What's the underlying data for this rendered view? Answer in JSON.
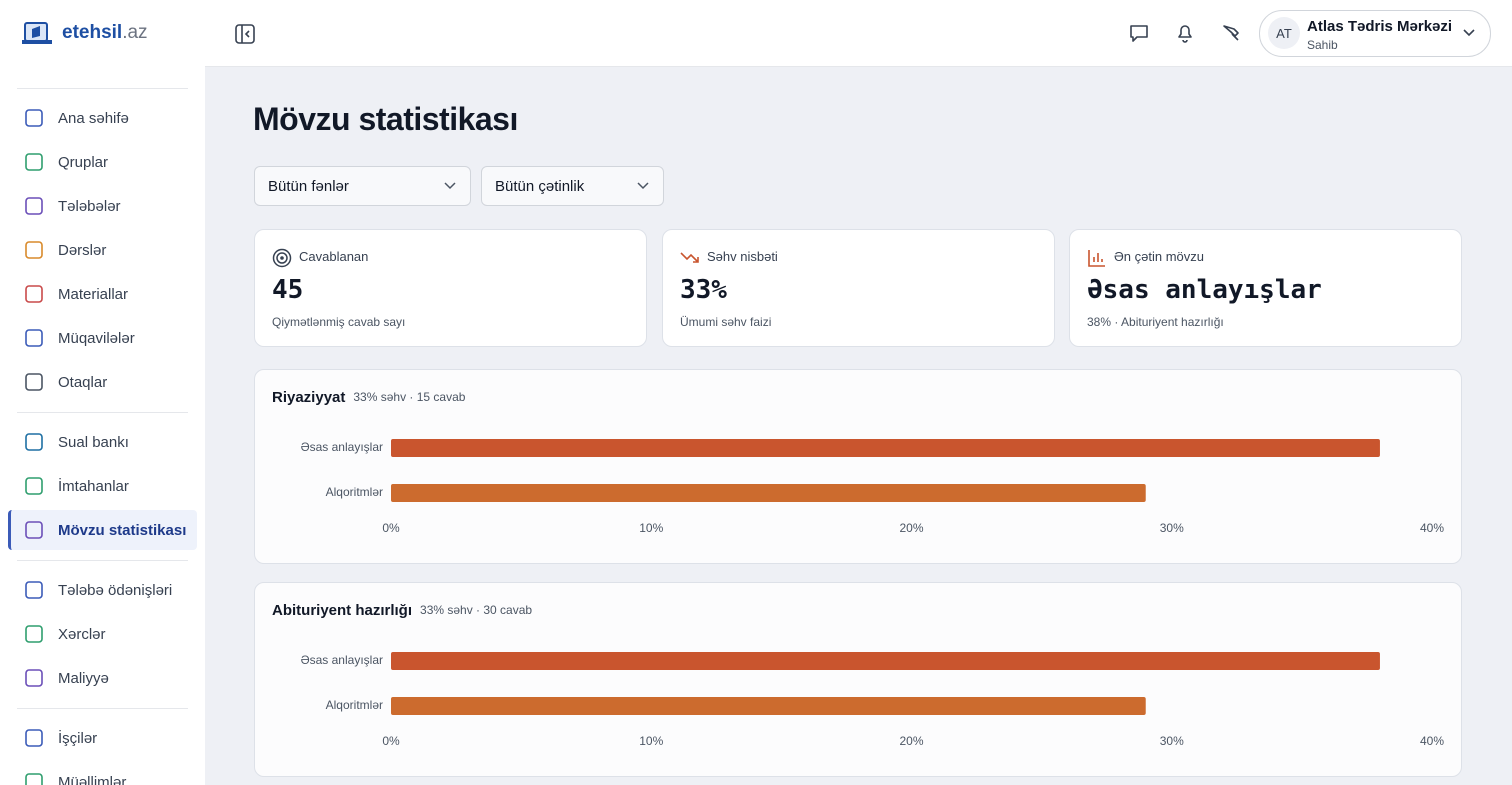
{
  "logo": {
    "name": "etehsil",
    "suffix": ".az"
  },
  "nav": [
    "Ana səhifə",
    "Qruplar",
    "Tələbələr",
    "Dərslər",
    "Materiallar",
    "Müqavilələr",
    "Otaqlar",
    "Sual bankı",
    "İmtahanlar",
    "Mövzu statistikası",
    "Tələbə ödənişləri",
    "Xərclər",
    "Maliyyə",
    "İşçilər",
    "Müəllimlər"
  ],
  "user": {
    "initials": "AT",
    "name": "Atlas Tədris Mərkəzi",
    "role": "Sahib"
  },
  "page_title": "Mövzu statistikası",
  "filters": [
    "Bütün fənlər",
    "Bütün çətinlik"
  ],
  "cards": [
    {
      "label": "Cavablanan",
      "value": "45",
      "caption": "Qiymətlənmiş cavab sayı"
    },
    {
      "label": "Səhv nisbəti",
      "value": "33%",
      "caption": "Ümumi səhv faizi"
    },
    {
      "label": "Ən çətin mövzu",
      "value": "Əsas anlayışlar",
      "caption": "38% · Abituriyent hazırlığı"
    }
  ],
  "panels": [
    {
      "title": "Riyaziyyat",
      "subtitle": "33% səhv · 15 cavab",
      "chart": {
        "type": "hbar",
        "categories": [
          "Əsas anlayışlar",
          "Alqoritmlər"
        ],
        "values": [
          38,
          29
        ],
        "colors": [
          "#c9552e",
          "#cc6b2e"
        ],
        "xlim": [
          0,
          40
        ],
        "xticks": [
          {
            "value": 0,
            "label": "0%"
          },
          {
            "value": 10,
            "label": "10%"
          },
          {
            "value": 20,
            "label": "20%"
          },
          {
            "value": 30,
            "label": "30%"
          },
          {
            "value": 40,
            "label": "40%"
          }
        ]
      }
    },
    {
      "title": "Abituriyent hazırlığı",
      "subtitle": "33% səhv · 30 cavab",
      "chart": {
        "type": "hbar",
        "categories": [
          "Əsas anlayışlar",
          "Alqoritmlər"
        ],
        "values": [
          38,
          29
        ],
        "colors": [
          "#c9552e",
          "#cc6b2e"
        ],
        "xlim": [
          0,
          40
        ],
        "xticks": [
          {
            "value": 0,
            "label": "0%"
          },
          {
            "value": 10,
            "label": "10%"
          },
          {
            "value": 20,
            "label": "20%"
          },
          {
            "value": 30,
            "label": "30%"
          },
          {
            "value": 40,
            "label": "40%"
          }
        ]
      }
    }
  ]
}
